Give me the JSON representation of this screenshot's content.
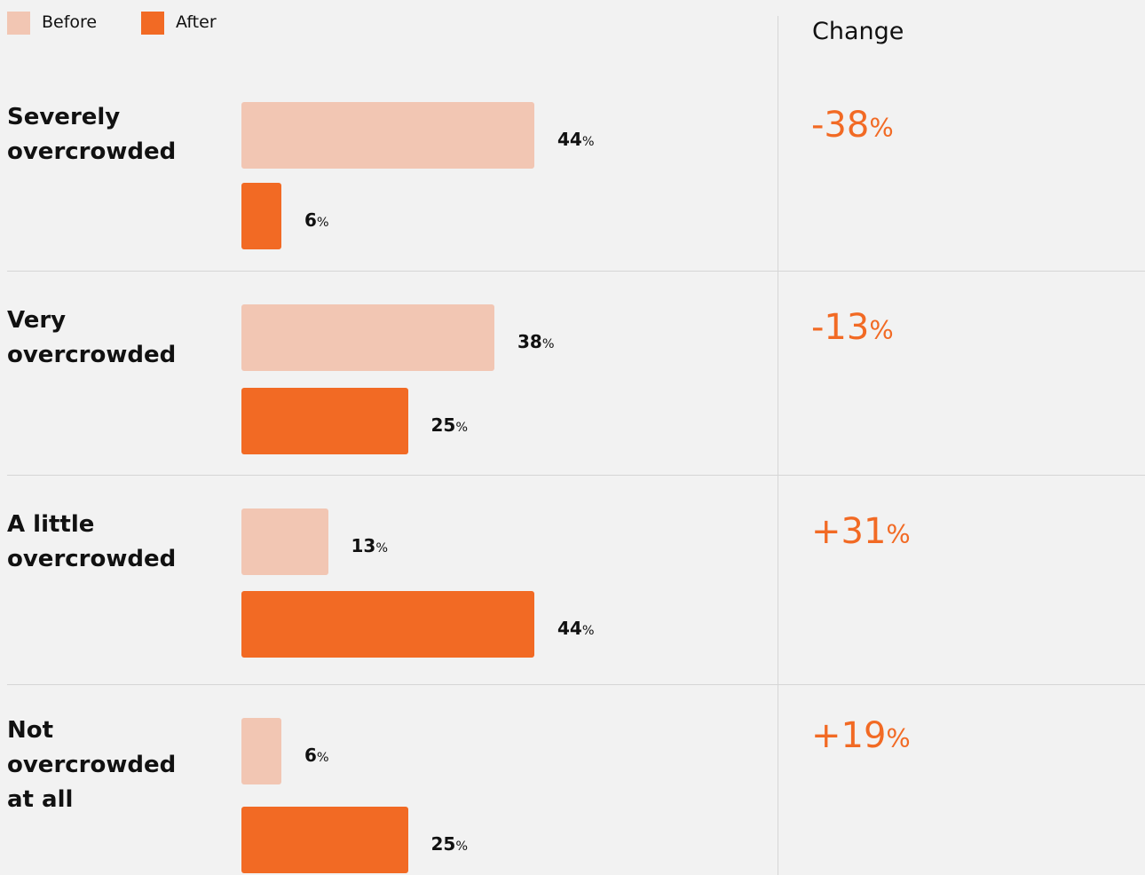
{
  "chart_data": {
    "type": "bar",
    "orientation": "horizontal",
    "categories": [
      "Severely overcrowded",
      "Very overcrowded",
      "A little overcrowded",
      "Not overcrowded at all"
    ],
    "series": [
      {
        "name": "Before",
        "color": "#f2c6b3",
        "values": [
          44,
          38,
          13,
          6
        ],
        "value_labels": [
          "44%",
          "38%",
          "13%",
          "6%"
        ]
      },
      {
        "name": "After",
        "color": "#f26a24",
        "values": [
          6,
          25,
          44,
          25
        ],
        "value_labels": [
          "6%",
          "25%",
          "44%",
          "25%"
        ]
      }
    ],
    "change": {
      "title": "Change",
      "color": "#f26a24",
      "values": [
        -38,
        -13,
        31,
        19
      ],
      "value_labels": [
        "-38%",
        "-13%",
        "+31%",
        "+19%"
      ]
    },
    "legend": "top-left"
  }
}
